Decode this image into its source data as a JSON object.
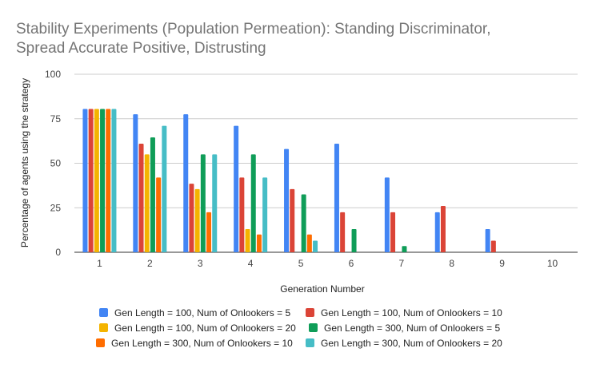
{
  "chart_data": {
    "type": "bar",
    "title_lines": [
      "Stability Experiments (Population Permeation): Standing Discriminator,",
      "Spread Accurate Positive, Distrusting"
    ],
    "xlabel": "Generation Number",
    "ylabel": "Percentage of agents using the strategy",
    "ylim": [
      0,
      100
    ],
    "yticks": [
      0,
      25,
      50,
      75,
      100
    ],
    "grid": true,
    "legend_position": "bottom",
    "categories": [
      "1",
      "2",
      "3",
      "4",
      "5",
      "6",
      "7",
      "8",
      "9",
      "10"
    ],
    "series": [
      {
        "name": "Gen Length = 100, Num of Onlookers = 5",
        "color": "#4285f4",
        "values": [
          80.5,
          77.5,
          77.5,
          71,
          58,
          61,
          42,
          22.5,
          13,
          0
        ]
      },
      {
        "name": "Gen Length = 100, Num of Onlookers = 10",
        "color": "#db4437",
        "values": [
          80.5,
          61,
          38.5,
          42,
          35.5,
          22.5,
          22.5,
          26,
          6.5,
          0
        ]
      },
      {
        "name": "Gen Length = 100, Num of Onlookers = 20",
        "color": "#f4b400",
        "values": [
          80.5,
          55,
          35.5,
          13,
          0,
          0,
          0,
          0,
          0,
          0
        ]
      },
      {
        "name": "Gen Length = 300, Num of Onlookers = 5",
        "color": "#0f9d58",
        "values": [
          80.5,
          64.5,
          55,
          55,
          32.5,
          13,
          3.5,
          0,
          0,
          0
        ]
      },
      {
        "name": "Gen Length = 300, Num of Onlookers = 10",
        "color": "#ff6d00",
        "values": [
          80.5,
          42,
          22.5,
          10,
          10,
          0,
          0,
          0,
          0,
          0
        ]
      },
      {
        "name": "Gen Length = 300, Num of Onlookers = 20",
        "color": "#46bdc6",
        "values": [
          80.5,
          71,
          55,
          42,
          6.5,
          0,
          0,
          0,
          0,
          0
        ]
      }
    ]
  }
}
